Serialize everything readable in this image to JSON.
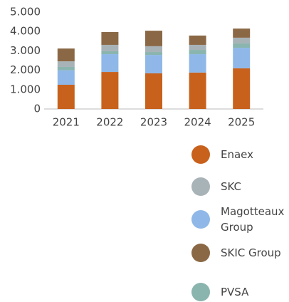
{
  "chart_data": {
    "type": "bar",
    "stacked": true,
    "categories": [
      "2021",
      "2022",
      "2023",
      "2024",
      "2025"
    ],
    "series": [
      {
        "name": "Enaex",
        "color": "#c8611c",
        "values": [
          1250,
          1910,
          1840,
          1880,
          2100
        ]
      },
      {
        "name": "SKC",
        "color": "#a8b3b8",
        "values": [
          290,
          330,
          300,
          260,
          300
        ]
      },
      {
        "name": "Magotteaux Group",
        "color": "#8fb8e8",
        "values": [
          750,
          920,
          950,
          950,
          1060
        ]
      },
      {
        "name": "SKIC Group",
        "color": "#8b6845",
        "values": [
          660,
          660,
          800,
          480,
          470
        ]
      },
      {
        "name": "PVSA",
        "color": "#8ab5ae",
        "values": [
          170,
          150,
          150,
          220,
          220
        ]
      }
    ],
    "ylim": [
      0,
      5000
    ],
    "yticks": [
      0,
      {
        "value": 1000,
        "label": "1.000"
      },
      {
        "value": 2000,
        "label": "2.000"
      },
      {
        "value": 3000,
        "label": "3.000"
      },
      {
        "value": 4000,
        "label": "4.000"
      },
      {
        "value": 5000,
        "label": "5.000"
      }
    ],
    "grid": false
  }
}
